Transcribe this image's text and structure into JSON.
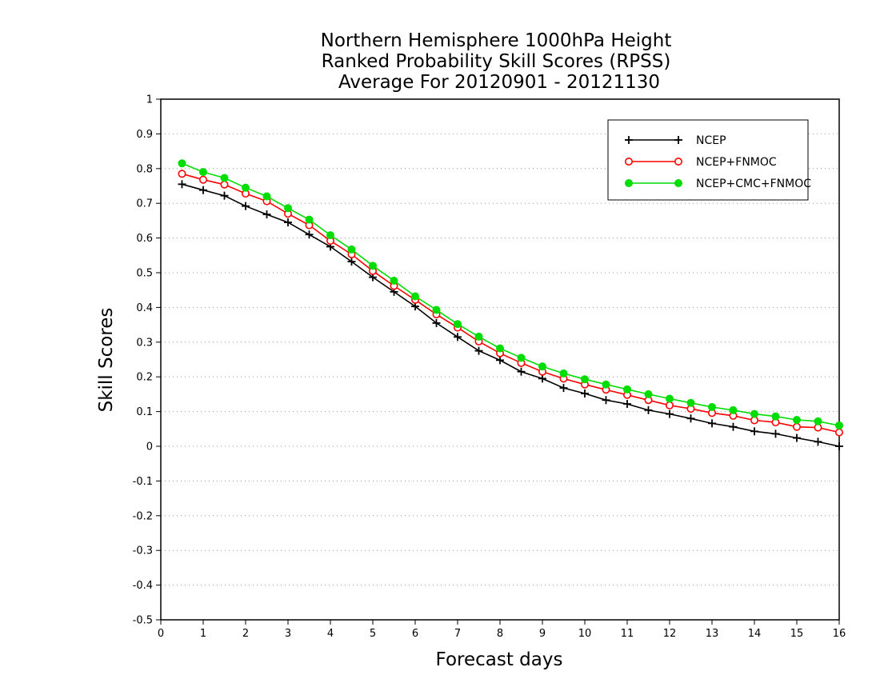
{
  "chart_data": {
    "type": "line",
    "title": [
      "Northern Hemisphere 1000hPa Height",
      "Ranked Probability Skill Scores (RPSS)",
      "Average For 20120901 - 20121130"
    ],
    "xlabel": "Forecast days",
    "ylabel": "Skill Scores",
    "xlim": [
      0,
      16
    ],
    "ylim": [
      -0.5,
      1
    ],
    "xticks": [
      "0",
      "1",
      "2",
      "3",
      "4",
      "5",
      "6",
      "7",
      "8",
      "9",
      "10",
      "11",
      "12",
      "13",
      "14",
      "15",
      "16"
    ],
    "yticks": [
      "-0.5",
      "-0.4",
      "-0.3",
      "-0.2",
      "-0.1",
      "0",
      "0.1",
      "0.2",
      "0.3",
      "0.4",
      "0.5",
      "0.6",
      "0.7",
      "0.8",
      "0.9",
      "1"
    ],
    "xtick_values": [
      0,
      1,
      2,
      3,
      4,
      5,
      6,
      7,
      8,
      9,
      10,
      11,
      12,
      13,
      14,
      15,
      16
    ],
    "ytick_values": [
      -0.5,
      -0.4,
      -0.3,
      -0.2,
      -0.1,
      0,
      0.1,
      0.2,
      0.3,
      0.4,
      0.5,
      0.6,
      0.7,
      0.8,
      0.9,
      1
    ],
    "grid": "horizontal dotted",
    "legend_position": "top-right",
    "x": [
      0.5,
      1,
      1.5,
      2,
      2.5,
      3,
      3.5,
      4,
      4.5,
      5,
      5.5,
      6,
      6.5,
      7,
      7.5,
      8,
      8.5,
      9,
      9.5,
      10,
      10.5,
      11,
      11.5,
      12,
      12.5,
      13,
      13.5,
      14,
      14.5,
      15,
      15.5,
      16
    ],
    "series": [
      {
        "name": "NCEP",
        "color": "#000000",
        "marker": "plus",
        "values": [
          0.755,
          0.738,
          0.722,
          0.692,
          0.668,
          0.645,
          0.61,
          0.575,
          0.532,
          0.487,
          0.445,
          0.403,
          0.355,
          0.315,
          0.275,
          0.248,
          0.215,
          0.195,
          0.168,
          0.152,
          0.133,
          0.122,
          0.104,
          0.093,
          0.08,
          0.066,
          0.056,
          0.043,
          0.036,
          0.024,
          0.013,
          0.0
        ]
      },
      {
        "name": "NCEP+FNMOC",
        "color": "#ff0000",
        "marker": "open-circle",
        "values": [
          0.785,
          0.768,
          0.754,
          0.728,
          0.706,
          0.67,
          0.637,
          0.592,
          0.553,
          0.505,
          0.462,
          0.422,
          0.38,
          0.342,
          0.302,
          0.268,
          0.24,
          0.215,
          0.195,
          0.178,
          0.163,
          0.148,
          0.133,
          0.118,
          0.108,
          0.096,
          0.088,
          0.075,
          0.069,
          0.056,
          0.054,
          0.04
        ]
      },
      {
        "name": "NCEP+CMC+FNMOC",
        "color": "#00dd00",
        "marker": "filled-circle",
        "values": [
          0.815,
          0.79,
          0.773,
          0.745,
          0.72,
          0.686,
          0.653,
          0.608,
          0.567,
          0.52,
          0.477,
          0.432,
          0.393,
          0.352,
          0.316,
          0.282,
          0.255,
          0.23,
          0.21,
          0.193,
          0.178,
          0.164,
          0.15,
          0.137,
          0.125,
          0.113,
          0.104,
          0.093,
          0.086,
          0.076,
          0.072,
          0.06
        ]
      }
    ]
  }
}
